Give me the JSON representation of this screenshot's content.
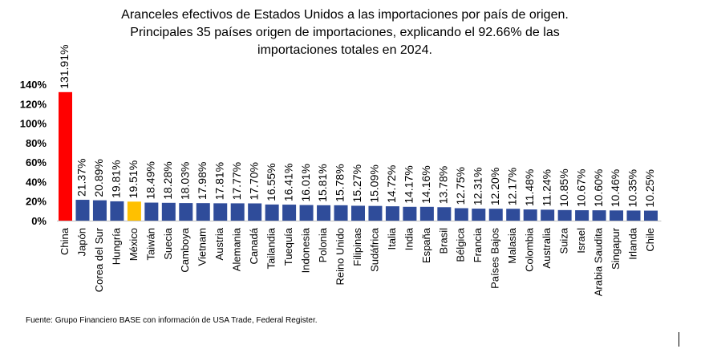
{
  "title": {
    "line1": "Aranceles efectivos de Estados Unidos a las importaciones por país de origen.",
    "line2": "Principales 35 países origen de importaciones, explicando el 92.66% de las",
    "line3": "importaciones totales en 2024."
  },
  "source": "Fuente: Grupo Financiero BASE con información de USA Trade, Federal Register.",
  "colors": {
    "default_bar": "#2f4c9a",
    "highlight_china": "#ff0000",
    "highlight_mexico": "#ffc000"
  },
  "chart_data": {
    "type": "bar",
    "title": "Aranceles efectivos de Estados Unidos a las importaciones por país de origen. Principales 35 países origen de importaciones, explicando el 92.66% de las importaciones totales en 2024.",
    "xlabel": "",
    "ylabel": "",
    "ylim": [
      0,
      140
    ],
    "yticks": [
      "0%",
      "20%",
      "40%",
      "60%",
      "80%",
      "100%",
      "120%",
      "140%"
    ],
    "grid": false,
    "legend": "none",
    "categories": [
      "China",
      "Japón",
      "Corea del Sur",
      "Hungría",
      "México",
      "Taiwán",
      "Suecia",
      "Camboya",
      "Vietnam",
      "Austria",
      "Alemania",
      "Canadá",
      "Tailandia",
      "Tuequía",
      "Indonesia",
      "Polonia",
      "Reino Unido",
      "Filipinas",
      "Sudáfrica",
      "Italia",
      "India",
      "España",
      "Brasil",
      "Bélgica",
      "Francia",
      "Países Bajos",
      "Malasia",
      "Colombia",
      "Australia",
      "Suiza",
      "Israel",
      "Arabia Saudita",
      "Singapur",
      "Irlanda",
      "Chile"
    ],
    "values": [
      131.91,
      21.37,
      20.89,
      19.81,
      19.51,
      18.49,
      18.28,
      18.03,
      17.98,
      17.81,
      17.77,
      17.7,
      16.55,
      16.41,
      16.01,
      15.81,
      15.78,
      15.27,
      15.09,
      14.72,
      14.17,
      14.16,
      13.78,
      12.75,
      12.31,
      12.2,
      12.17,
      11.48,
      11.24,
      10.85,
      10.67,
      10.6,
      10.46,
      10.35,
      10.25
    ],
    "data_labels": [
      "131.91%",
      "21.37%",
      "20.89%",
      "19.81%",
      "19.51%",
      "18.49%",
      "18.28%",
      "18.03%",
      "17.98%",
      "17.81%",
      "17.77%",
      "17.70%",
      "16.55%",
      "16.41%",
      "16.01%",
      "15.81%",
      "15.78%",
      "15.27%",
      "15.09%",
      "14.72%",
      "14.17%",
      "14.16%",
      "13.78%",
      "12.75%",
      "12.31%",
      "12.20%",
      "12.17%",
      "11.48%",
      "11.24%",
      "10.85%",
      "10.67%",
      "10.60%",
      "10.46%",
      "10.35%",
      "10.25%"
    ],
    "highlights": {
      "China": "highlight_china",
      "México": "highlight_mexico"
    }
  }
}
